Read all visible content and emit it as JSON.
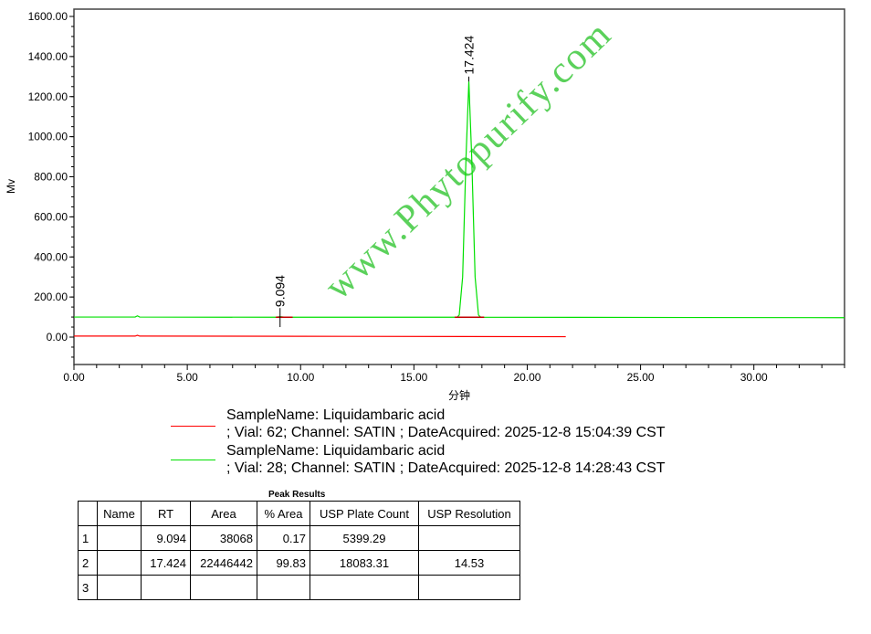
{
  "chart_data": {
    "type": "line",
    "xlabel": "分钟",
    "ylabel": "Mv",
    "xlim": [
      0,
      34
    ],
    "ylim": [
      -140,
      1640
    ],
    "xticks": [
      "0.00",
      "5.00",
      "10.00",
      "15.00",
      "20.00",
      "25.00",
      "30.00"
    ],
    "yticks": [
      "0.00",
      "200.00",
      "400.00",
      "600.00",
      "800.00",
      "1000.00",
      "1200.00",
      "1400.00",
      "1600.00"
    ],
    "peak_labels": [
      "9.094",
      "17.424"
    ],
    "series": [
      {
        "color": "#ff0000",
        "points": [
          [
            0,
            5
          ],
          [
            2.7,
            5
          ],
          [
            2.8,
            9
          ],
          [
            2.9,
            5
          ],
          [
            10,
            4
          ],
          [
            21.7,
            2
          ]
        ]
      },
      {
        "color": "#00e000",
        "points": [
          [
            0,
            100
          ],
          [
            2.7,
            100
          ],
          [
            2.8,
            106
          ],
          [
            2.9,
            100
          ],
          [
            8.9,
            99
          ],
          [
            9.094,
            102
          ],
          [
            9.3,
            99
          ],
          [
            16.9,
            99
          ],
          [
            17.0,
            110
          ],
          [
            17.15,
            300
          ],
          [
            17.3,
            900
          ],
          [
            17.424,
            1275
          ],
          [
            17.55,
            900
          ],
          [
            17.7,
            300
          ],
          [
            17.85,
            110
          ],
          [
            17.95,
            99
          ],
          [
            34,
            97
          ]
        ]
      }
    ]
  },
  "legend": [
    {
      "color": "#ff0000",
      "line1": "SampleName: Liquidambaric acid",
      "line2": "; Vial: 62; Channel: SATIN ; DateAcquired: 2025-12-8 15:04:39 CST"
    },
    {
      "color": "#00e000",
      "line1": "SampleName: Liquidambaric acid",
      "line2": "; Vial: 28; Channel: SATIN ; DateAcquired: 2025-12-8 14:28:43 CST"
    }
  ],
  "watermark": "www.Phytopurify.com",
  "table": {
    "title": "Peak Results",
    "headers": [
      "",
      "Name",
      "RT",
      "Area",
      "% Area",
      "USP Plate Count",
      "USP Resolution"
    ],
    "rows": [
      [
        "1",
        "",
        "9.094",
        "38068",
        "0.17",
        "5399.29",
        ""
      ],
      [
        "2",
        "",
        "17.424",
        "22446442",
        "99.83",
        "18083.31",
        "14.53"
      ],
      [
        "3",
        "",
        "",
        "",
        "",
        "",
        ""
      ]
    ]
  }
}
